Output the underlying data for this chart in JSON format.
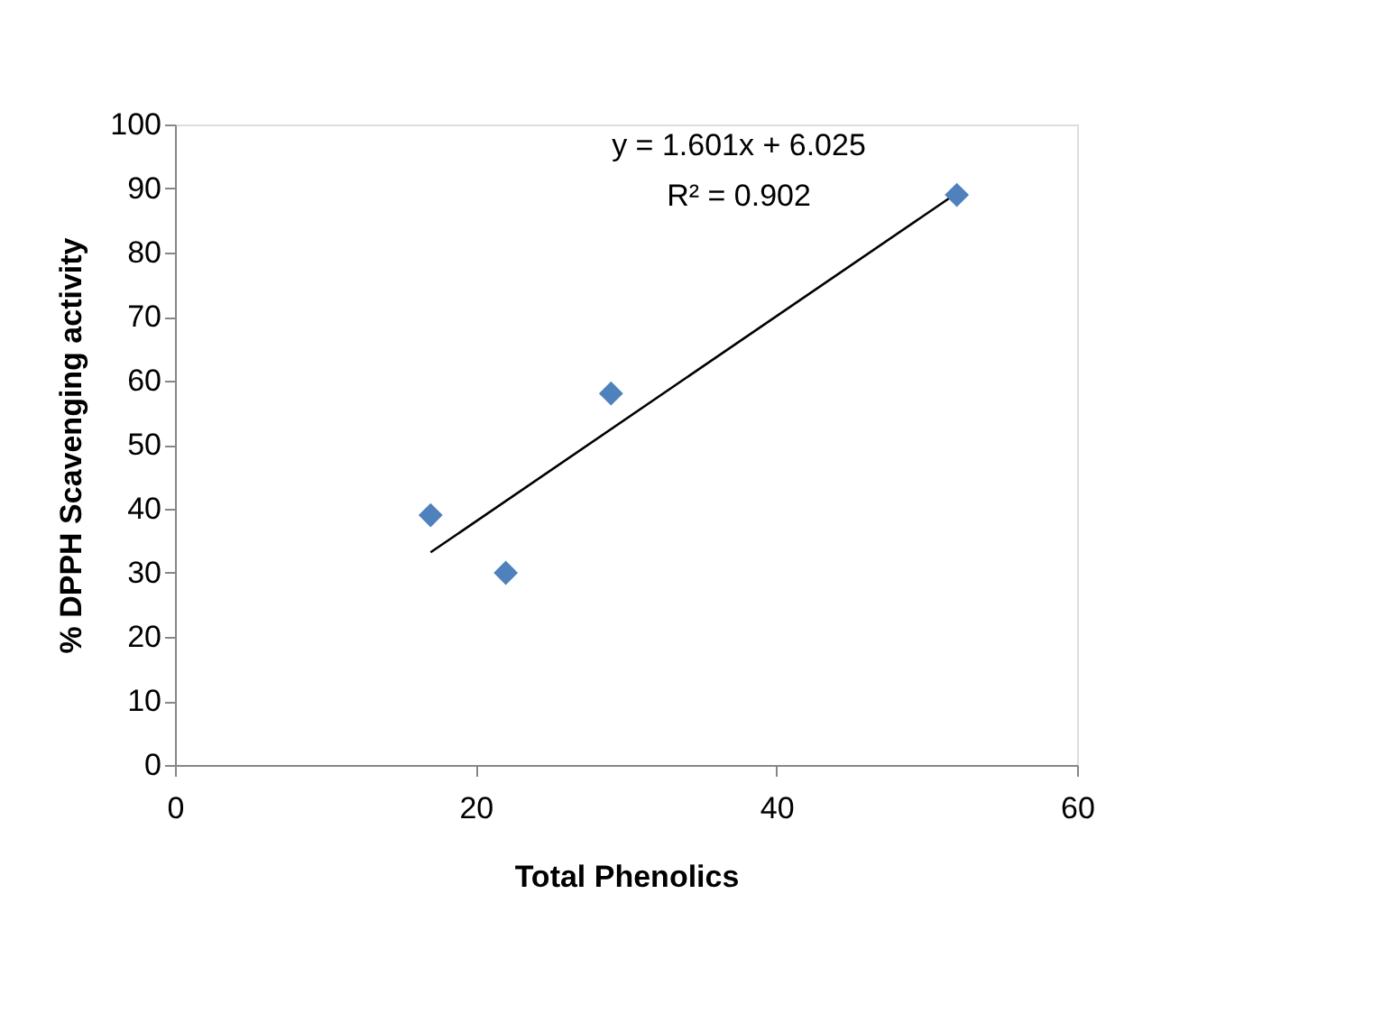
{
  "chart_data": {
    "type": "scatter",
    "xlabel": "Total Phenolics",
    "ylabel": "% DPPH Scavenging activity",
    "x": [
      17,
      22,
      29,
      52
    ],
    "series": [
      {
        "type": "scatter",
        "color": "#4f81bd",
        "values": [
          39,
          30,
          58,
          89
        ],
        "marker": "diamond"
      },
      {
        "type": "line",
        "color": "#000000",
        "x": [
          17,
          52
        ],
        "values": [
          33.2,
          89.3
        ],
        "marker": "none"
      }
    ],
    "xlim": [
      0,
      60
    ],
    "xticks": [
      0,
      20,
      40,
      60
    ],
    "ylim": [
      0,
      100
    ],
    "yticks": [
      0,
      10,
      20,
      30,
      40,
      50,
      60,
      70,
      80,
      90,
      100
    ],
    "grid": false,
    "annotations": [
      "y = 1.601x + 6.025",
      "R² = 0.902"
    ]
  }
}
